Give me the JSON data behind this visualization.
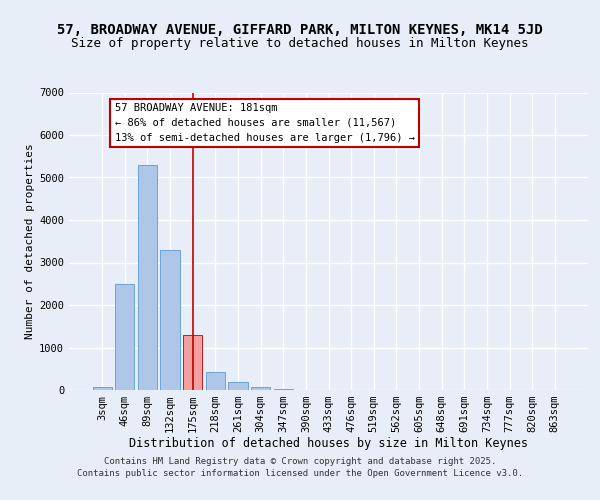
{
  "title1": "57, BROADWAY AVENUE, GIFFARD PARK, MILTON KEYNES, MK14 5JD",
  "title2": "Size of property relative to detached houses in Milton Keynes",
  "xlabel": "Distribution of detached houses by size in Milton Keynes",
  "ylabel": "Number of detached properties",
  "categories": [
    "3sqm",
    "46sqm",
    "89sqm",
    "132sqm",
    "175sqm",
    "218sqm",
    "261sqm",
    "304sqm",
    "347sqm",
    "390sqm",
    "433sqm",
    "476sqm",
    "519sqm",
    "562sqm",
    "605sqm",
    "648sqm",
    "691sqm",
    "734sqm",
    "777sqm",
    "820sqm",
    "863sqm"
  ],
  "values": [
    60,
    2500,
    5300,
    3300,
    1300,
    430,
    200,
    80,
    30,
    10,
    5,
    3,
    2,
    1,
    1,
    0,
    0,
    0,
    0,
    0,
    0
  ],
  "bar_color": "#aec6e8",
  "bar_edge_color": "#5b9bd5",
  "highlight_bar_index": 4,
  "highlight_bar_color": "#f4a0a0",
  "highlight_bar_edge_color": "#c00000",
  "vline_x": 4,
  "vline_color": "#c00000",
  "ylim": [
    0,
    7000
  ],
  "yticks": [
    0,
    1000,
    2000,
    3000,
    4000,
    5000,
    6000,
    7000
  ],
  "annotation_text": "57 BROADWAY AVENUE: 181sqm\n← 86% of detached houses are smaller (11,567)\n13% of semi-detached houses are larger (1,796) →",
  "annotation_box_color": "#ffffff",
  "annotation_box_edge": "#c00000",
  "footer_text": "Contains HM Land Registry data © Crown copyright and database right 2025.\nContains public sector information licensed under the Open Government Licence v3.0.",
  "bg_color": "#e8eef8",
  "grid_color": "#ffffff",
  "title1_fontsize": 10,
  "title2_fontsize": 9,
  "xlabel_fontsize": 8.5,
  "ylabel_fontsize": 8,
  "tick_fontsize": 7.5,
  "annotation_fontsize": 7.5,
  "footer_fontsize": 6.5
}
